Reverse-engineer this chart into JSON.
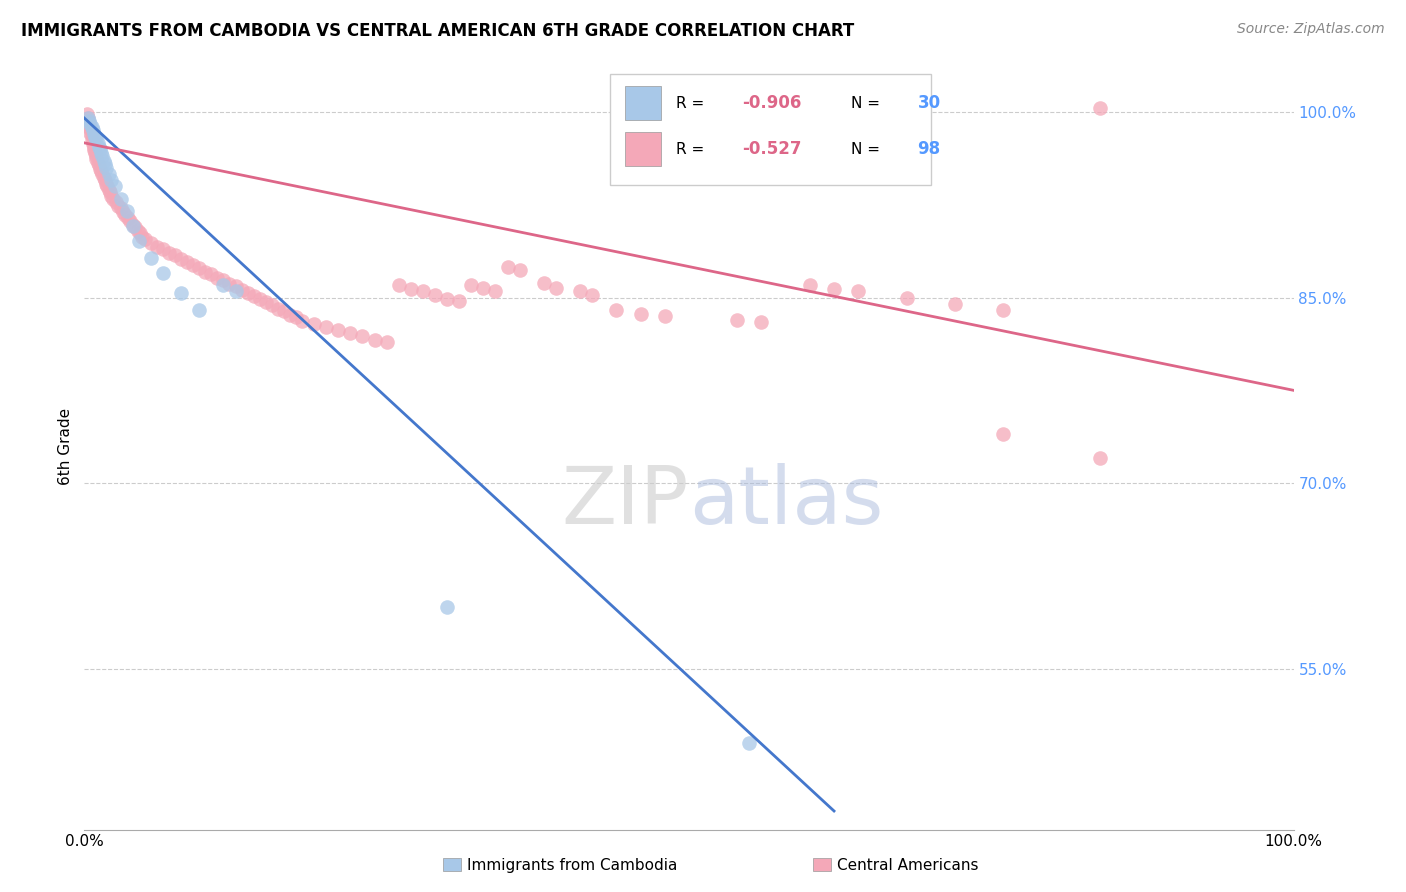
{
  "title": "IMMIGRANTS FROM CAMBODIA VS CENTRAL AMERICAN 6TH GRADE CORRELATION CHART",
  "source": "Source: ZipAtlas.com",
  "ylabel": "6th Grade",
  "xlim": [
    0.0,
    1.0
  ],
  "ylim": [
    0.42,
    1.04
  ],
  "y_tick_positions_right": [
    0.55,
    0.7,
    0.85,
    1.0
  ],
  "y_tick_labels_right": [
    "55.0%",
    "70.0%",
    "85.0%",
    "100.0%"
  ],
  "blue_color": "#a8c8e8",
  "pink_color": "#f4a8b8",
  "blue_line_color": "#4477cc",
  "pink_line_color": "#dd6688",
  "right_axis_color": "#5599ff",
  "background_color": "#ffffff",
  "grid_color": "#cccccc",
  "watermark_zip": "ZIP",
  "watermark_atlas": "atlas",
  "blue_line": [
    [
      0.0,
      0.995
    ],
    [
      0.62,
      0.435
    ]
  ],
  "pink_line": [
    [
      0.0,
      0.975
    ],
    [
      1.0,
      0.775
    ]
  ],
  "blue_points": [
    [
      0.003,
      0.995
    ],
    [
      0.004,
      0.993
    ],
    [
      0.005,
      0.99
    ],
    [
      0.006,
      0.988
    ],
    [
      0.007,
      0.985
    ],
    [
      0.008,
      0.982
    ],
    [
      0.009,
      0.98
    ],
    [
      0.01,
      0.978
    ],
    [
      0.011,
      0.975
    ],
    [
      0.012,
      0.972
    ],
    [
      0.013,
      0.97
    ],
    [
      0.014,
      0.967
    ],
    [
      0.015,
      0.964
    ],
    [
      0.016,
      0.96
    ],
    [
      0.017,
      0.958
    ],
    [
      0.018,
      0.955
    ],
    [
      0.02,
      0.95
    ],
    [
      0.022,
      0.945
    ],
    [
      0.025,
      0.94
    ],
    [
      0.03,
      0.93
    ],
    [
      0.035,
      0.92
    ],
    [
      0.04,
      0.908
    ],
    [
      0.045,
      0.896
    ],
    [
      0.055,
      0.882
    ],
    [
      0.065,
      0.87
    ],
    [
      0.08,
      0.854
    ],
    [
      0.095,
      0.84
    ],
    [
      0.115,
      0.86
    ],
    [
      0.125,
      0.855
    ],
    [
      0.3,
      0.6
    ],
    [
      0.55,
      0.49
    ]
  ],
  "pink_points": [
    [
      0.002,
      0.998
    ],
    [
      0.003,
      0.995
    ],
    [
      0.003,
      0.992
    ],
    [
      0.004,
      0.99
    ],
    [
      0.004,
      0.988
    ],
    [
      0.005,
      0.986
    ],
    [
      0.005,
      0.983
    ],
    [
      0.006,
      0.981
    ],
    [
      0.006,
      0.978
    ],
    [
      0.007,
      0.976
    ],
    [
      0.007,
      0.974
    ],
    [
      0.008,
      0.971
    ],
    [
      0.008,
      0.969
    ],
    [
      0.009,
      0.967
    ],
    [
      0.01,
      0.964
    ],
    [
      0.01,
      0.962
    ],
    [
      0.011,
      0.959
    ],
    [
      0.012,
      0.957
    ],
    [
      0.013,
      0.954
    ],
    [
      0.014,
      0.952
    ],
    [
      0.015,
      0.95
    ],
    [
      0.016,
      0.947
    ],
    [
      0.017,
      0.945
    ],
    [
      0.018,
      0.942
    ],
    [
      0.019,
      0.94
    ],
    [
      0.02,
      0.937
    ],
    [
      0.021,
      0.935
    ],
    [
      0.022,
      0.932
    ],
    [
      0.024,
      0.93
    ],
    [
      0.026,
      0.927
    ],
    [
      0.028,
      0.924
    ],
    [
      0.03,
      0.922
    ],
    [
      0.032,
      0.919
    ],
    [
      0.034,
      0.917
    ],
    [
      0.036,
      0.914
    ],
    [
      0.038,
      0.912
    ],
    [
      0.04,
      0.909
    ],
    [
      0.042,
      0.907
    ],
    [
      0.044,
      0.904
    ],
    [
      0.046,
      0.902
    ],
    [
      0.048,
      0.899
    ],
    [
      0.05,
      0.897
    ],
    [
      0.055,
      0.894
    ],
    [
      0.06,
      0.891
    ],
    [
      0.065,
      0.889
    ],
    [
      0.07,
      0.886
    ],
    [
      0.075,
      0.884
    ],
    [
      0.08,
      0.881
    ],
    [
      0.085,
      0.879
    ],
    [
      0.09,
      0.876
    ],
    [
      0.095,
      0.874
    ],
    [
      0.1,
      0.871
    ],
    [
      0.105,
      0.869
    ],
    [
      0.11,
      0.866
    ],
    [
      0.115,
      0.864
    ],
    [
      0.12,
      0.861
    ],
    [
      0.125,
      0.859
    ],
    [
      0.13,
      0.856
    ],
    [
      0.135,
      0.854
    ],
    [
      0.14,
      0.851
    ],
    [
      0.145,
      0.849
    ],
    [
      0.15,
      0.846
    ],
    [
      0.155,
      0.844
    ],
    [
      0.16,
      0.841
    ],
    [
      0.165,
      0.839
    ],
    [
      0.17,
      0.836
    ],
    [
      0.175,
      0.834
    ],
    [
      0.18,
      0.831
    ],
    [
      0.19,
      0.829
    ],
    [
      0.2,
      0.826
    ],
    [
      0.21,
      0.824
    ],
    [
      0.22,
      0.821
    ],
    [
      0.23,
      0.819
    ],
    [
      0.24,
      0.816
    ],
    [
      0.25,
      0.814
    ],
    [
      0.26,
      0.86
    ],
    [
      0.27,
      0.857
    ],
    [
      0.28,
      0.855
    ],
    [
      0.29,
      0.852
    ],
    [
      0.3,
      0.849
    ],
    [
      0.31,
      0.847
    ],
    [
      0.32,
      0.86
    ],
    [
      0.33,
      0.858
    ],
    [
      0.34,
      0.855
    ],
    [
      0.35,
      0.875
    ],
    [
      0.36,
      0.872
    ],
    [
      0.38,
      0.862
    ],
    [
      0.39,
      0.858
    ],
    [
      0.41,
      0.855
    ],
    [
      0.42,
      0.852
    ],
    [
      0.44,
      0.84
    ],
    [
      0.46,
      0.837
    ],
    [
      0.48,
      0.835
    ],
    [
      0.54,
      0.832
    ],
    [
      0.56,
      0.83
    ],
    [
      0.6,
      0.86
    ],
    [
      0.62,
      0.857
    ],
    [
      0.64,
      0.855
    ],
    [
      0.68,
      0.85
    ],
    [
      0.72,
      0.845
    ],
    [
      0.76,
      0.84
    ],
    [
      0.84,
      1.003
    ],
    [
      0.76,
      0.74
    ],
    [
      0.84,
      0.72
    ]
  ]
}
